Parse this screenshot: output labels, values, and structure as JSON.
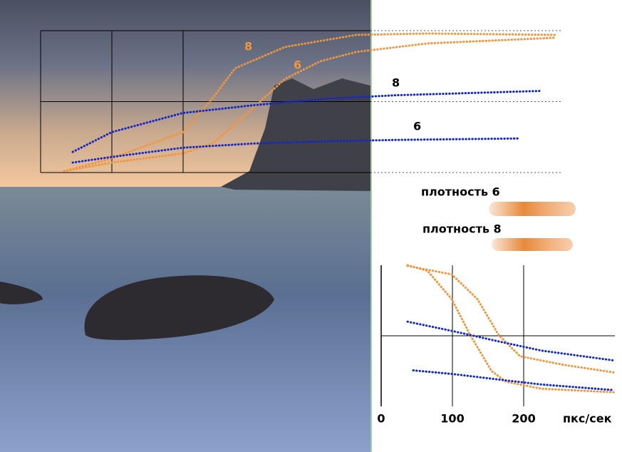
{
  "chart_data": [
    {
      "type": "line",
      "xlim": [
        0,
        730
      ],
      "ylim": [
        0,
        2
      ],
      "xticks": [
        0,
        100,
        200
      ],
      "yticks": [
        0,
        1,
        2
      ],
      "grid": true,
      "series": [
        {
          "name": "8",
          "color": "#f0963c",
          "x": [
            33,
            100,
            200,
            243,
            273,
            343,
            443,
            543,
            723
          ],
          "values": [
            0.02,
            0.2,
            0.57,
            1.07,
            1.47,
            1.77,
            1.94,
            1.96,
            1.94
          ]
        },
        {
          "name": "6",
          "color": "#f0963c",
          "x": [
            33,
            100,
            200,
            243,
            283,
            343,
            393,
            443,
            543,
            723
          ],
          "values": [
            0.02,
            0.14,
            0.27,
            0.42,
            0.77,
            1.32,
            1.57,
            1.7,
            1.82,
            1.9
          ]
        },
        {
          "name": "8",
          "color": "#1428c8",
          "x": [
            45,
            100,
            200,
            300,
            400,
            500,
            700
          ],
          "values": [
            0.29,
            0.57,
            0.84,
            0.95,
            1.04,
            1.09,
            1.15
          ]
        },
        {
          "name": "6",
          "color": "#1428c8",
          "x": [
            45,
            100,
            200,
            300,
            400,
            500,
            670
          ],
          "values": [
            0.14,
            0.22,
            0.35,
            0.41,
            0.44,
            0.46,
            0.48
          ]
        }
      ]
    },
    {
      "type": "line",
      "x_label": "пкс/сек",
      "xlim": [
        0,
        328
      ],
      "ylim": [
        0,
        2
      ],
      "xticks": [
        0,
        100,
        200
      ],
      "yticks": [
        1
      ],
      "grid": true,
      "series": [
        {
          "color": "#f0963c",
          "x": [
            37,
            65,
            99,
            125,
            155,
            175,
            225,
            327
          ],
          "values": [
            2.0,
            1.92,
            1.52,
            1.01,
            0.5,
            0.35,
            0.25,
            0.2
          ]
        },
        {
          "color": "#f0963c",
          "x": [
            37,
            99,
            135,
            165,
            195,
            255,
            327
          ],
          "values": [
            1.99,
            1.87,
            1.52,
            1.01,
            0.71,
            0.59,
            0.48
          ]
        },
        {
          "color": "#1428c8",
          "x": [
            37,
            99,
            165,
            225,
            327
          ],
          "values": [
            1.2,
            1.07,
            0.92,
            0.79,
            0.65
          ]
        },
        {
          "color": "#1428c8",
          "x": [
            45,
            99,
            165,
            225,
            327
          ],
          "values": [
            0.51,
            0.46,
            0.38,
            0.31,
            0.23
          ]
        }
      ]
    }
  ],
  "legend": [
    {
      "label": "плотность 6"
    },
    {
      "label": "плотность 8"
    }
  ]
}
